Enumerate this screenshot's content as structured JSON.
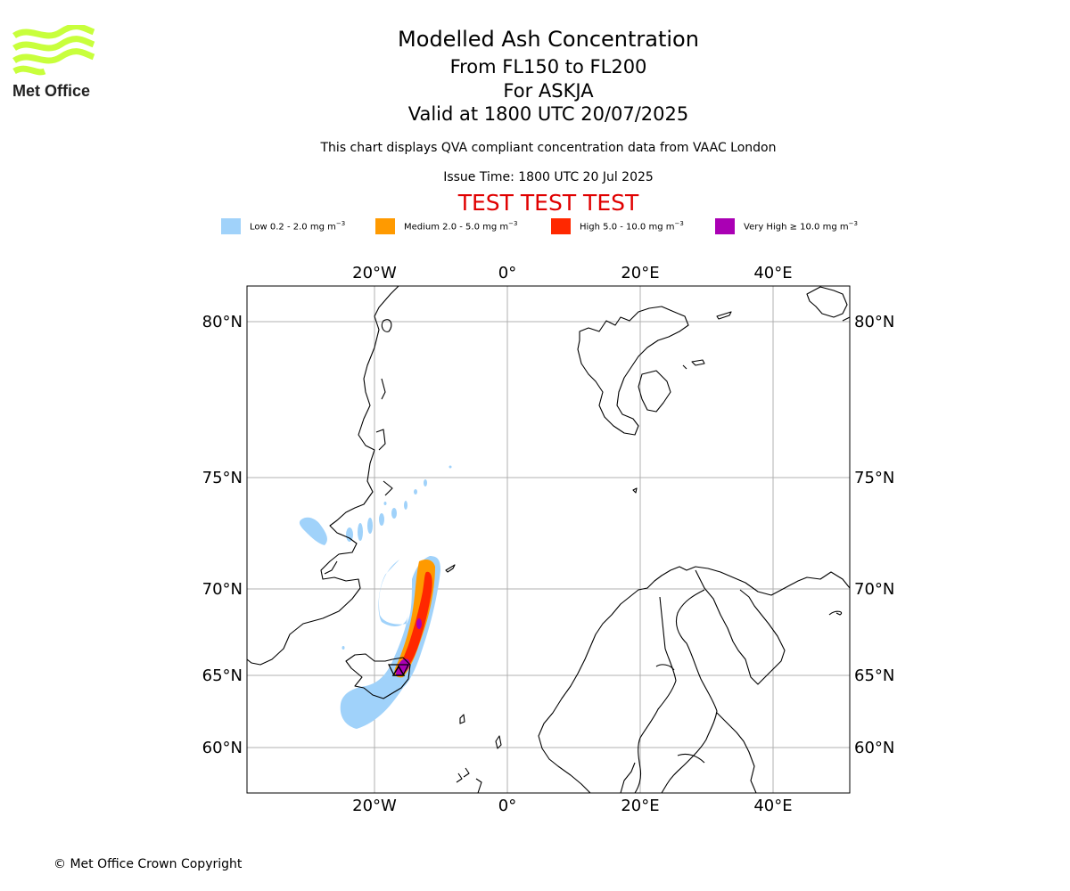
{
  "header": {
    "title": "Modelled Ash Concentration",
    "levels": "From FL150 to FL200",
    "volcano": "For ASKJA",
    "valid_time": "Valid at 1800 UTC 20/07/2025",
    "description": "This chart displays QVA compliant concentration data from VAAC London",
    "issue_time": "Issue Time: 1800 UTC 20 Jul 2025",
    "test_banner": "TEST TEST TEST"
  },
  "logo": {
    "text": "Met Office",
    "color": "#c8ff3c"
  },
  "legend": {
    "items": [
      {
        "label": "Low 0.2 - 2.0 mg m",
        "color": "#a0d2fa"
      },
      {
        "label": "Medium 2.0 - 5.0 mg m",
        "color": "#ff9a00"
      },
      {
        "label": "High 5.0 - 10.0 mg m",
        "color": "#ff2800"
      },
      {
        "label": "Very High ≥ 10.0 mg m",
        "color": "#aa00b4"
      }
    ],
    "unit_exponent": "−3"
  },
  "map": {
    "lon_ticks": [
      "20°W",
      "0°",
      "20°E",
      "40°E"
    ],
    "lat_ticks": [
      "80°N",
      "75°N",
      "70°N",
      "65°N",
      "60°N"
    ],
    "volcano_marker": "triangle"
  },
  "footer": {
    "copyright": "© Met Office Crown Copyright"
  }
}
